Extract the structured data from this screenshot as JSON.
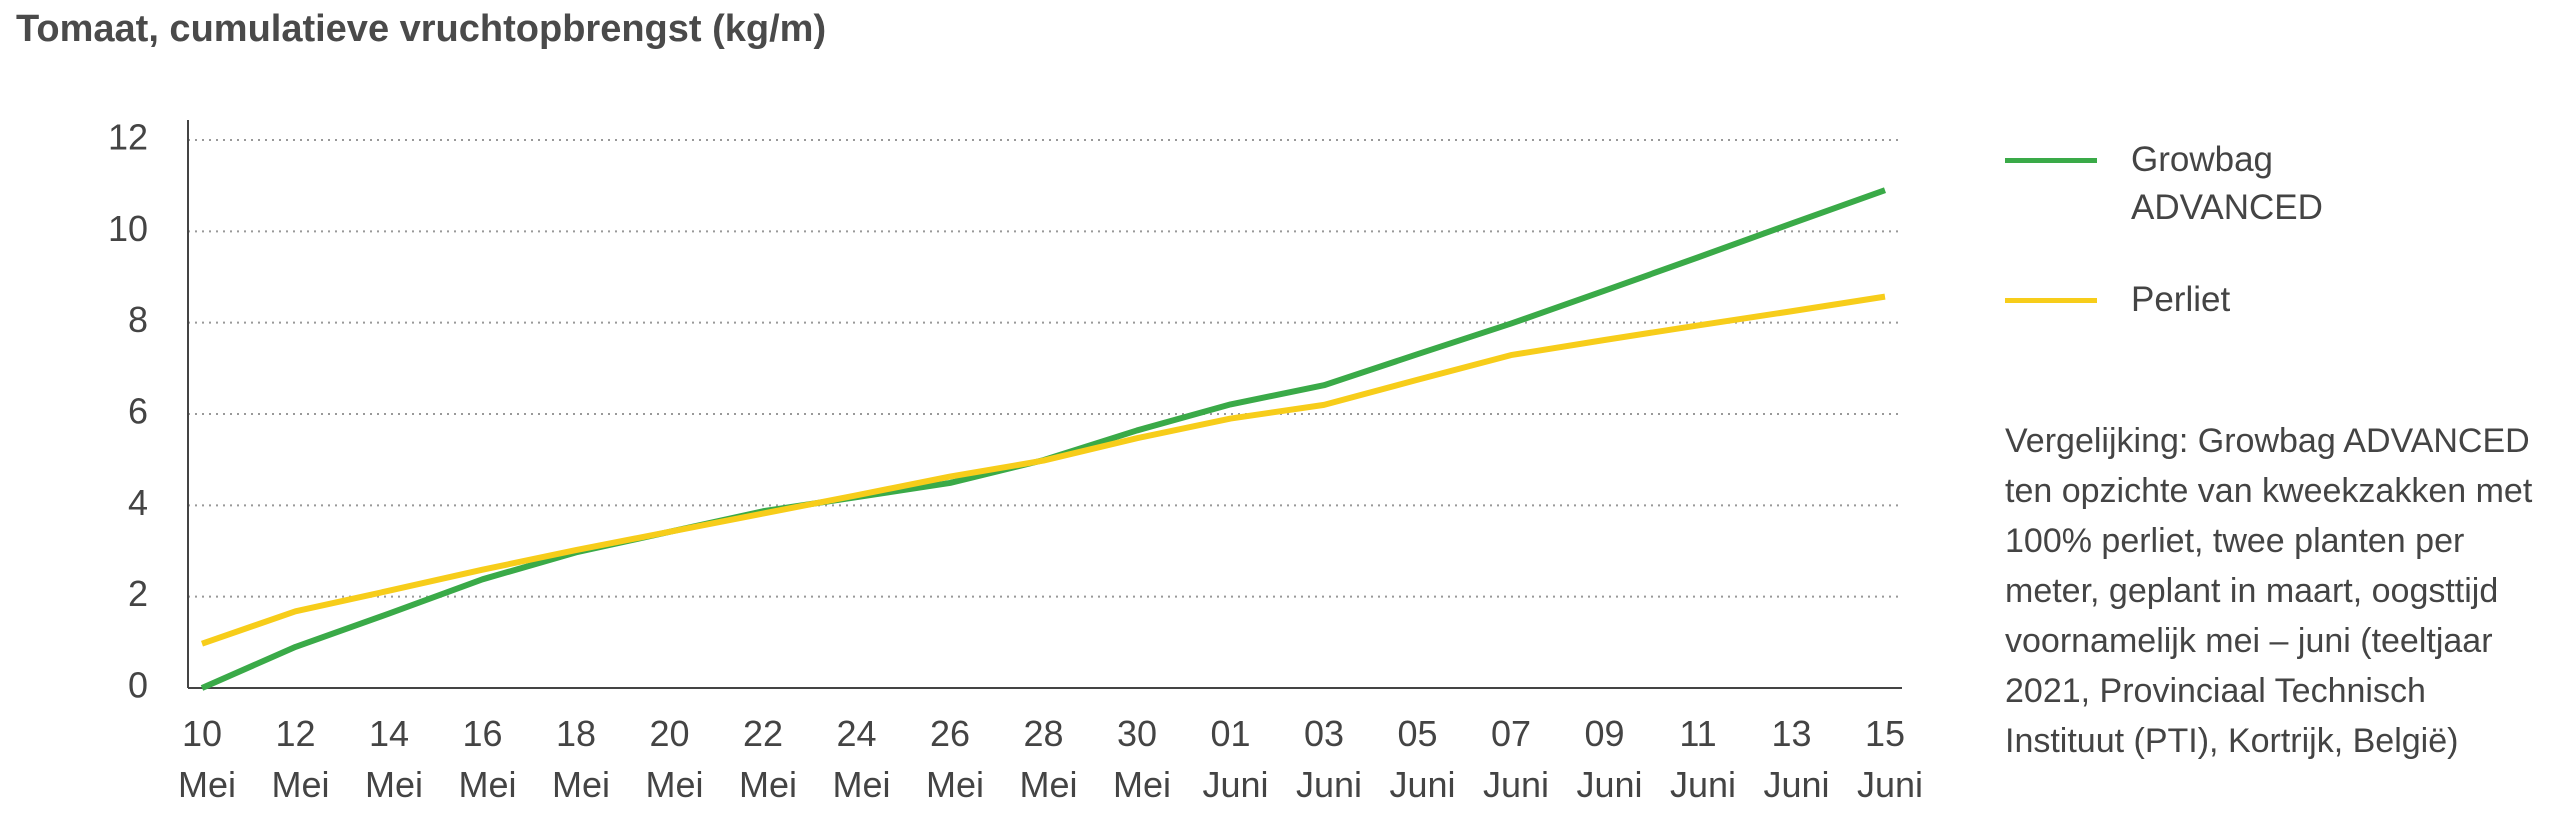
{
  "chart_data": {
    "type": "line",
    "title": "Tomaat, cumulatieve vruchtopbrengst (kg/m)",
    "categories": [
      "10 Mei",
      "12 Mei",
      "14 Mei",
      "16 Mei",
      "18 Mei",
      "20 Mei",
      "22 Mei",
      "24 Mei",
      "26 Mei",
      "28 Mei",
      "30 Mei",
      "01 Juni",
      "03 Juni",
      "05 Juni",
      "07 Juni",
      "09 Juni",
      "11 Juni",
      "13 Juni",
      "15 Juni"
    ],
    "series": [
      {
        "name": "Growbag ADVANCED",
        "color": "#3aaa48",
        "values": [
          0,
          0.9,
          1.63,
          2.38,
          2.97,
          3.42,
          3.87,
          4.18,
          4.49,
          4.99,
          5.64,
          6.21,
          6.63,
          7.31,
          7.98,
          8.7,
          9.43,
          10.17,
          10.9
        ]
      },
      {
        "name": "Perliet",
        "color": "#f7cd1a",
        "values": [
          0.97,
          1.68,
          2.13,
          2.59,
          3.02,
          3.42,
          3.82,
          4.22,
          4.63,
          4.98,
          5.47,
          5.9,
          6.2,
          6.75,
          7.29,
          7.62,
          7.94,
          8.25,
          8.57
        ]
      }
    ],
    "ylim": [
      0,
      12
    ],
    "yticks": [
      0,
      2,
      4,
      6,
      8,
      10,
      12
    ],
    "grid": true,
    "legend": "right",
    "note": "Vergelijking: Growbag ADVANCED ten opzichte van kweekzakken met 100% perliet, twee planten per meter, geplant in maart, oogsttijd voornamelijk mei – juni (teeltjaar 2021, Provinciaal Technisch Instituut (PTI), Kortrijk, België)"
  }
}
